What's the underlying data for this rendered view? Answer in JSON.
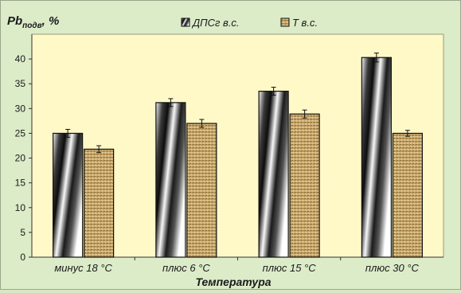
{
  "chart_data": {
    "type": "bar",
    "categories": [
      "минус 18 °С",
      "плюс 6 °С",
      "плюс 15 °С",
      "плюс 30 °С"
    ],
    "series": [
      {
        "name": "ДПСг в.с.",
        "values": [
          25.0,
          31.2,
          33.5,
          40.3
        ],
        "errors": [
          0.8,
          0.8,
          0.8,
          0.9
        ]
      },
      {
        "name": "Т в.с.",
        "values": [
          21.8,
          27.0,
          28.9,
          25.0
        ],
        "errors": [
          0.7,
          0.8,
          0.8,
          0.6
        ]
      }
    ],
    "ylabel_main": "Pb",
    "ylabel_sub": "подв",
    "ylabel_suffix": ", %",
    "xlabel": "Температура",
    "ylim": [
      0,
      45
    ],
    "yticks": [
      0,
      5,
      10,
      15,
      20,
      25,
      30,
      35,
      40
    ],
    "grid": false,
    "legend_position": "top",
    "colors": {
      "background": "#dcebc8",
      "plot_area": "#fff9c8",
      "text": "#1a1a1a",
      "series_1_light": "#ffffff",
      "series_1_dark": "#111111",
      "series_2_base": "#c8a86a",
      "series_2_dark": "#7a5a2a"
    }
  }
}
